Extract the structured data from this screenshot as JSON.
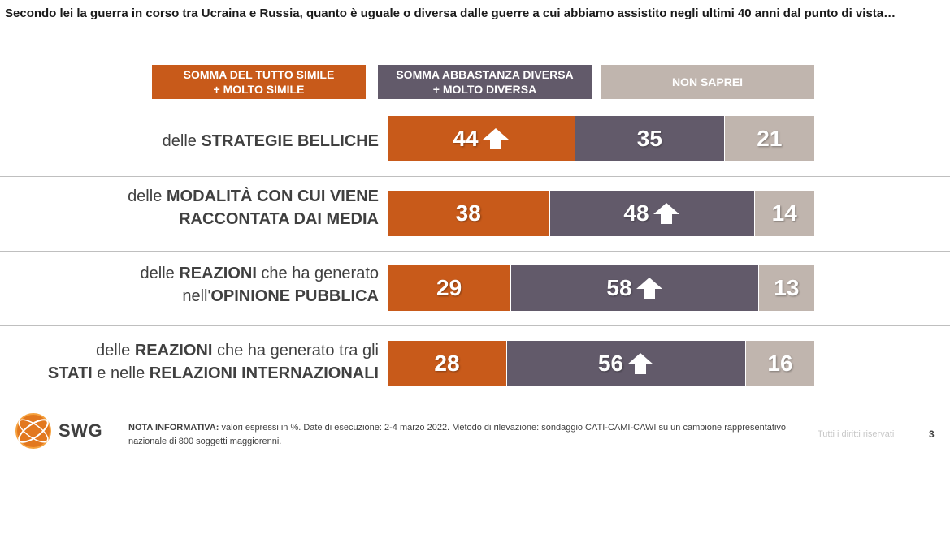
{
  "title": "Secondo lei la guerra in corso tra Ucraina e Russia, quanto è uguale o diversa dalle guerre a cui abbiamo assistito negli ultimi 40 anni dal punto di vista…",
  "legend": [
    {
      "line1": "SOMMA DEL TUTTO SIMILE",
      "line2": "+ MOLTO SIMILE",
      "color": "#c85a1a"
    },
    {
      "line1": "SOMMA ABBASTANZA DIVERSA",
      "line2": "+ MOLTO DIVERSA",
      "color": "#625a6a"
    },
    {
      "line1": "NON SAPREI",
      "line2": "",
      "color": "#c0b5ae"
    }
  ],
  "chart_data": {
    "type": "bar",
    "orientation": "horizontal-stacked",
    "series": [
      {
        "name": "SOMMA DEL TUTTO SIMILE + MOLTO SIMILE",
        "color": "#c85a1a",
        "values": [
          44,
          38,
          29,
          28
        ],
        "up_arrow": [
          true,
          false,
          false,
          false
        ]
      },
      {
        "name": "SOMMA ABBASTANZA DIVERSA + MOLTO DIVERSA",
        "color": "#625a6a",
        "values": [
          35,
          48,
          58,
          56
        ],
        "up_arrow": [
          false,
          true,
          true,
          true
        ]
      },
      {
        "name": "NON SAPREI",
        "color": "#c0b5ae",
        "values": [
          21,
          14,
          13,
          16
        ],
        "up_arrow": [
          false,
          false,
          false,
          false
        ]
      }
    ],
    "categories": [
      {
        "line1": [
          {
            "t": "delle ",
            "b": false
          },
          {
            "t": "STRATEGIE BELLICHE",
            "b": true
          }
        ],
        "line2": []
      },
      {
        "line1": [
          {
            "t": "delle ",
            "b": false
          },
          {
            "t": "MODALITÀ CON CUI VIENE",
            "b": true
          }
        ],
        "line2": [
          {
            "t": "RACCONTATA DAI MEDIA",
            "b": true
          }
        ]
      },
      {
        "line1": [
          {
            "t": "delle ",
            "b": false
          },
          {
            "t": "REAZIONI",
            "b": true
          },
          {
            "t": " che ha generato",
            "b": false
          }
        ],
        "line2": [
          {
            "t": "nell'",
            "b": false
          },
          {
            "t": "OPINIONE PUBBLICA",
            "b": true
          }
        ]
      },
      {
        "line1": [
          {
            "t": "delle ",
            "b": false
          },
          {
            "t": "REAZIONI",
            "b": true
          },
          {
            "t": " che ha generato tra gli",
            "b": false
          }
        ],
        "line2": [
          {
            "t": "STATI",
            "b": true
          },
          {
            "t": " e nelle ",
            "b": false
          },
          {
            "t": "RELAZIONI INTERNAZIONALI",
            "b": true
          }
        ]
      }
    ],
    "unit": "%",
    "total": 100
  },
  "logo": {
    "text": "SWG"
  },
  "note": {
    "label": "NOTA INFORMATIVA:",
    "text": " valori espressi in %. Date di esecuzione: 2-4 marzo 2022. Metodo di rilevazione: sondaggio CATI-CAMI-CAWI su un campione rappresentativo nazionale di 800 soggetti maggiorenni."
  },
  "footer": {
    "rights": "Tutti i diritti riservati",
    "page": "3"
  }
}
